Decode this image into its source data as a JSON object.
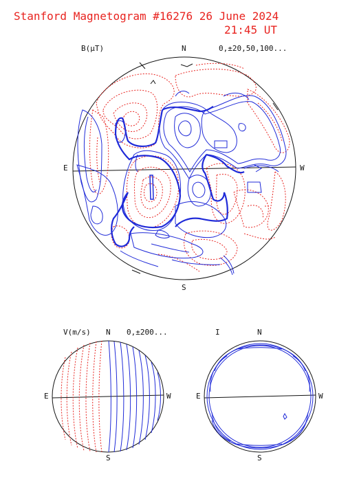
{
  "header": {
    "title_line1": "Stanford Magnetogram #16276 26 June 2024",
    "title_line2": "21:45 UT"
  },
  "magnetogram": {
    "quantity": "B(μT)",
    "north": "N",
    "south": "S",
    "east": "E",
    "west": "W",
    "contour_levels": "0,±20,50,100..."
  },
  "velocity_map": {
    "quantity": "V(m/s)",
    "north": "N",
    "south": "S",
    "east": "E",
    "west": "W",
    "contour_levels": "0,±200..."
  },
  "intensity_map": {
    "quantity": "I",
    "north": "N",
    "south": "S",
    "east": "E",
    "west": "W"
  },
  "colors": {
    "title": "#e8231f",
    "positive_contour": "#1f2ad8",
    "negative_contour": "#e8231f",
    "outline": "#111111"
  }
}
